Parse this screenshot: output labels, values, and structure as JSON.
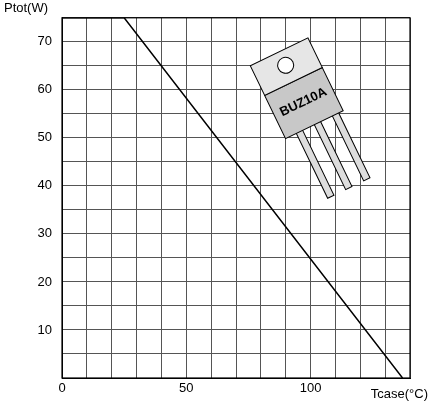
{
  "chart_data": {
    "type": "line",
    "x_label": "Tcase(°C)",
    "y_label": "Ptot(W)",
    "x": [
      0,
      25,
      137
    ],
    "values": [
      75,
      75,
      0
    ],
    "color": "#000000",
    "xlim": [
      0,
      140
    ],
    "ylim": [
      0,
      75
    ],
    "xticks": [
      0,
      50,
      100
    ],
    "yticks": [
      10,
      20,
      30,
      40,
      50,
      60,
      70
    ],
    "grid": true,
    "annotations": [
      "BUZ10A"
    ]
  }
}
